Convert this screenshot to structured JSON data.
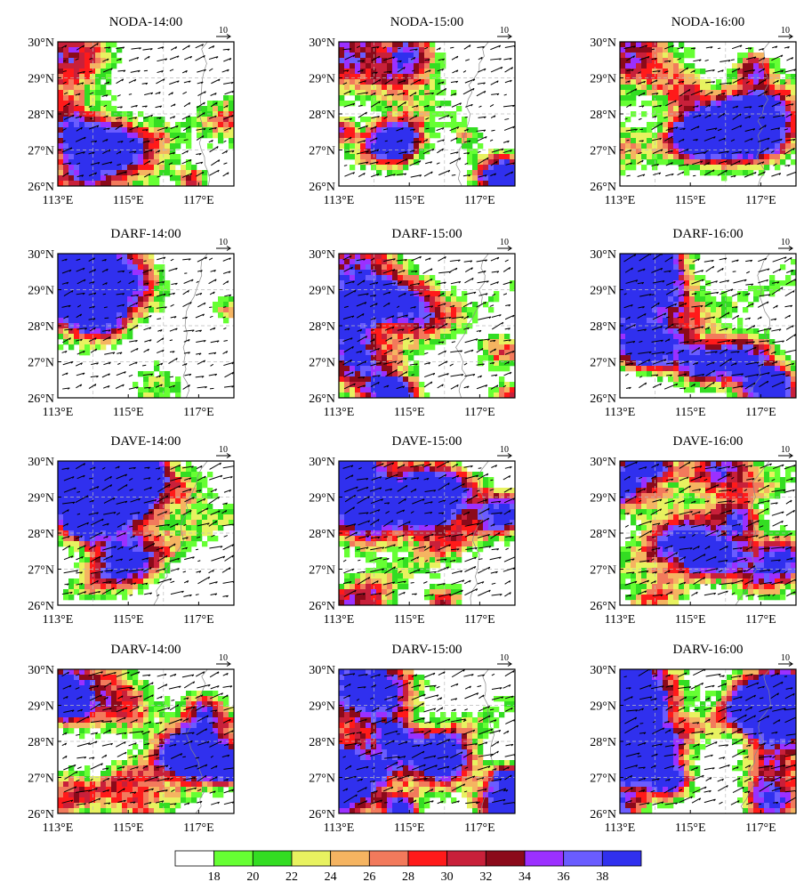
{
  "chart_data": {
    "type": "heatmap",
    "rows": [
      "NODA",
      "DARF",
      "DAVE",
      "DARV"
    ],
    "columns": [
      "14:00",
      "15:00",
      "16:00"
    ],
    "panel_titles": [
      [
        "NODA-14:00",
        "NODA-15:00",
        "NODA-16:00"
      ],
      [
        "DARF-14:00",
        "DARF-15:00",
        "DARF-16:00"
      ],
      [
        "DAVE-14:00",
        "DAVE-15:00",
        "DAVE-16:00"
      ],
      [
        "DARV-14:00",
        "DARV-15:00",
        "DARV-16:00"
      ]
    ],
    "x_ticks": [
      113,
      115,
      117
    ],
    "x_tick_labels": [
      "113°E",
      "115°E",
      "117°E"
    ],
    "y_ticks": [
      26,
      27,
      28,
      29,
      30
    ],
    "y_tick_labels": [
      "26°N",
      "27°N",
      "28°N",
      "29°N",
      "30°N"
    ],
    "xlim": [
      113,
      118
    ],
    "ylim": [
      26,
      30
    ],
    "grid": true,
    "reference_vector_label": "10",
    "colorbar": {
      "levels": [
        18,
        20,
        22,
        24,
        26,
        28,
        30,
        32,
        34,
        36,
        38
      ],
      "tick_labels": [
        "18",
        "20",
        "22",
        "24",
        "26",
        "28",
        "30",
        "32",
        "34",
        "36",
        "38"
      ],
      "colors": [
        "#ffffff",
        "#66ff33",
        "#33dd22",
        "#e8f260",
        "#f5b461",
        "#f27a5c",
        "#ff1a1a",
        "#c8203a",
        "#8b0a1a",
        "#9b30ff",
        "#6a5cff",
        "#3030ee"
      ]
    },
    "field_intensity": [
      [
        0.35,
        0.5,
        0.55
      ],
      [
        0.3,
        0.6,
        0.75
      ],
      [
        0.75,
        0.7,
        0.75
      ],
      [
        0.8,
        0.85,
        0.85
      ]
    ]
  }
}
